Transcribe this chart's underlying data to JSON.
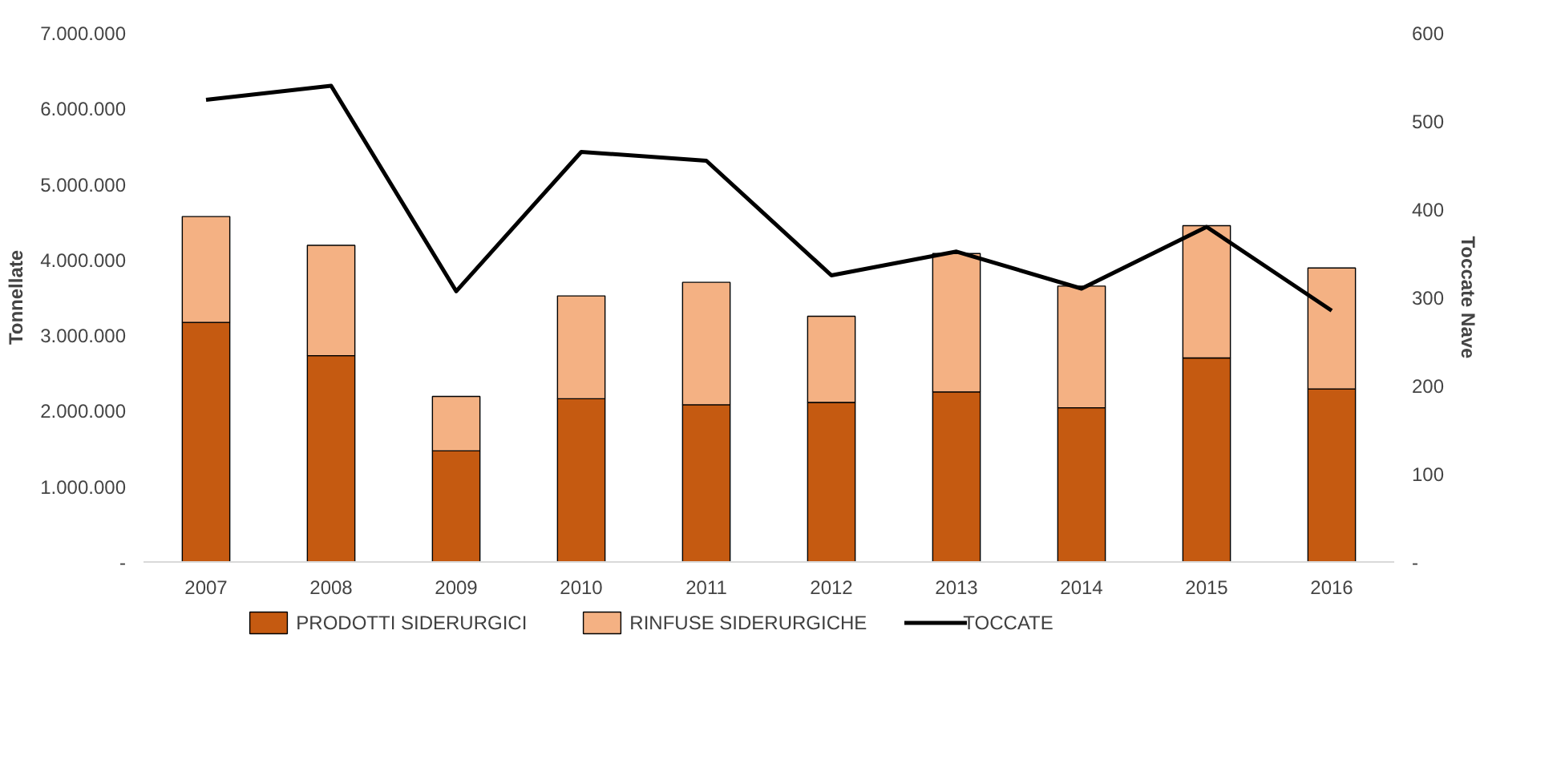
{
  "chart_data": {
    "type": "bar",
    "stacked": true,
    "ylabel": "Tonnellate",
    "y2label": "Toccate Nave",
    "categories": [
      "2007",
      "2008",
      "2009",
      "2010",
      "2011",
      "2012",
      "2013",
      "2014",
      "2015",
      "2016"
    ],
    "series": [
      {
        "name": "PRODOTTI SIDERURGICI",
        "color": "#c55a11",
        "values": [
          3170000,
          2730000,
          1470000,
          2160000,
          2080000,
          2110000,
          2250000,
          2040000,
          2700000,
          2290000
        ]
      },
      {
        "name": "RINFUSE SIDERURGICHE",
        "color": "#f4b183",
        "values": [
          1400000,
          1460000,
          720000,
          1360000,
          1620000,
          1140000,
          1830000,
          1610000,
          1750000,
          1600000
        ]
      },
      {
        "name": "TOCCATE",
        "color": "#000000",
        "type": "line",
        "axis": "y2",
        "values": [
          524,
          540,
          307,
          465,
          455,
          325,
          352,
          310,
          380,
          285
        ]
      }
    ],
    "ylim": [
      0,
      7000000
    ],
    "yticks": [
      {
        "value": 0,
        "label": "-"
      },
      {
        "value": 1000000,
        "label": "1.000.000"
      },
      {
        "value": 2000000,
        "label": "2.000.000"
      },
      {
        "value": 3000000,
        "label": "3.000.000"
      },
      {
        "value": 4000000,
        "label": "4.000.000"
      },
      {
        "value": 5000000,
        "label": "5.000.000"
      },
      {
        "value": 6000000,
        "label": "6.000.000"
      },
      {
        "value": 7000000,
        "label": "7.000.000"
      }
    ],
    "y2lim": [
      0,
      600
    ],
    "y2ticks": [
      {
        "value": 0,
        "label": "-"
      },
      100,
      200,
      300,
      400,
      500,
      600
    ],
    "grid": false,
    "legend": "bottom",
    "marker": "none",
    "line_style": "solid"
  }
}
